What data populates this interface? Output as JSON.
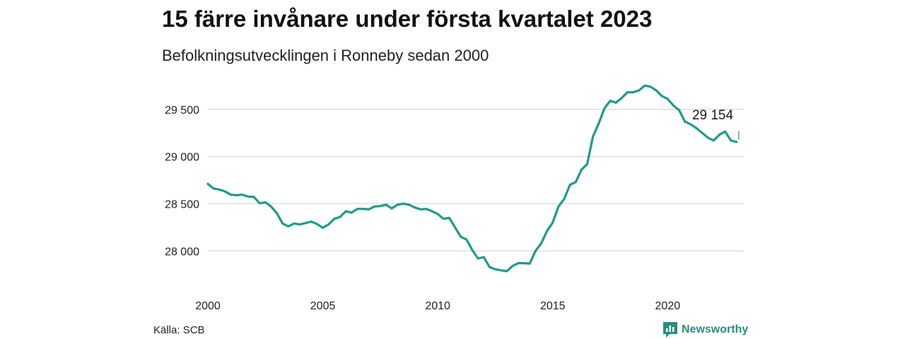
{
  "chart_data": {
    "type": "line",
    "title": "15 färre invånare under första kvartalet 2023",
    "subtitle": "Befolkningsutvecklingen i Ronneby sedan 2000",
    "source": "Källa: SCB",
    "brand": "Newsworthy",
    "color": "#1f9a8a",
    "x_ticks": [
      2000,
      2005,
      2010,
      2015,
      2020
    ],
    "x_tick_labels": [
      "2000",
      "2005",
      "2010",
      "2015",
      "2020"
    ],
    "y_ticks": [
      28000,
      28500,
      29000,
      29500
    ],
    "y_tick_labels": [
      "28 000",
      "28 500",
      "29 000",
      "29 500"
    ],
    "xlim": [
      2000,
      2023.25
    ],
    "ylim": [
      27800,
      29760
    ],
    "grid": true,
    "annotation": {
      "label": "29 154",
      "x": 2023.0
    },
    "series": [
      {
        "x": [
          2000.0,
          2000.25,
          2000.5,
          2000.75,
          2001.0,
          2001.25,
          2001.5,
          2001.75,
          2002.0,
          2002.25,
          2002.5,
          2002.75,
          2003.0,
          2003.25,
          2003.5,
          2003.75,
          2004.0,
          2004.25,
          2004.5,
          2004.75,
          2005.0,
          2005.25,
          2005.5,
          2005.75,
          2006.0,
          2006.25,
          2006.5,
          2006.75,
          2007.0,
          2007.25,
          2007.5,
          2007.75,
          2008.0,
          2008.25,
          2008.5,
          2008.75,
          2009.0,
          2009.25,
          2009.5,
          2009.75,
          2010.0,
          2010.25,
          2010.5,
          2010.75,
          2011.0,
          2011.25,
          2011.5,
          2011.75,
          2012.0,
          2012.25,
          2012.5,
          2012.75,
          2013.0,
          2013.25,
          2013.5,
          2013.75,
          2014.0,
          2014.25,
          2014.5,
          2014.75,
          2015.0,
          2015.25,
          2015.5,
          2015.75,
          2016.0,
          2016.25,
          2016.5,
          2016.75,
          2017.0,
          2017.25,
          2017.5,
          2017.75,
          2018.0,
          2018.25,
          2018.5,
          2018.75,
          2019.0,
          2019.25,
          2019.5,
          2019.75,
          2020.0,
          2020.25,
          2020.5,
          2020.75,
          2021.0,
          2021.25,
          2021.5,
          2021.75,
          2022.0,
          2022.25,
          2022.5,
          2022.75,
          2023.0
        ],
        "values": [
          28710,
          28660,
          28650,
          28630,
          28595,
          28590,
          28595,
          28575,
          28572,
          28505,
          28515,
          28470,
          28400,
          28290,
          28260,
          28290,
          28280,
          28295,
          28310,
          28285,
          28245,
          28280,
          28340,
          28360,
          28420,
          28405,
          28445,
          28445,
          28440,
          28470,
          28475,
          28490,
          28450,
          28490,
          28500,
          28490,
          28460,
          28440,
          28445,
          28420,
          28390,
          28340,
          28350,
          28250,
          28150,
          28120,
          28010,
          27920,
          27935,
          27830,
          27805,
          27795,
          27785,
          27840,
          27870,
          27870,
          27865,
          28000,
          28080,
          28210,
          28300,
          28470,
          28550,
          28700,
          28730,
          28860,
          28920,
          29210,
          29350,
          29510,
          29590,
          29570,
          29620,
          29680,
          29680,
          29700,
          29750,
          29740,
          29700,
          29640,
          29610,
          29540,
          29490,
          29370,
          29340,
          29300,
          29250,
          29200,
          29170,
          29230,
          29265,
          29170,
          29154
        ]
      }
    ]
  }
}
